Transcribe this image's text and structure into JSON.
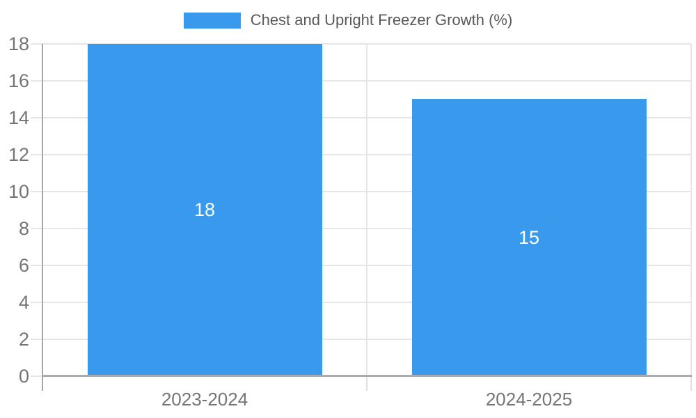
{
  "chart_data": {
    "type": "bar",
    "title": "",
    "categories": [
      "2023-2024",
      "2024-2025"
    ],
    "series": [
      {
        "name": "Chest and Upright Freezer Growth (%)",
        "values": [
          18,
          15
        ],
        "color": "#3999EC"
      }
    ],
    "bar_value_labels": [
      "18",
      "15"
    ],
    "xlabel": "",
    "ylabel": "",
    "ylim": [
      0,
      18
    ],
    "ytick_step": 2,
    "yticks": [
      0,
      2,
      4,
      6,
      8,
      10,
      12,
      14,
      16,
      18
    ],
    "grid": true,
    "legend_position": "top-center",
    "colors": {
      "bar": "#3999EC",
      "gridline": "#E6E6E6",
      "x_tick": "#E0E0E0",
      "y_axis": "#A6A6A6",
      "x_axis": "#ABABAB",
      "tick_label": "#757575",
      "legend_text": "#595959",
      "bar_label": "#FFFFFF",
      "background": "#FFFFFF"
    }
  }
}
